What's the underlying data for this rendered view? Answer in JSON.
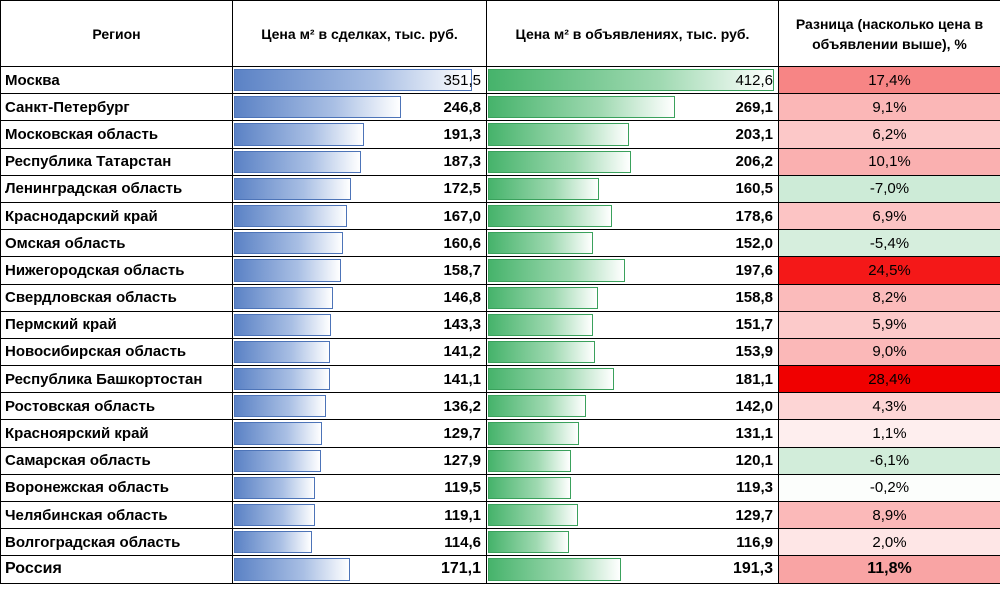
{
  "headers": {
    "region": "Регион",
    "deal": "Цена м² в сделках, тыс. руб.",
    "listing": "Цена м² в объявлениях, тыс. руб.",
    "diff": "Разница (насколько цена в объявлении выше), %"
  },
  "rows": [
    {
      "region": "Москва",
      "deal": "351,5",
      "listing": "412,6",
      "diff": "17,4%",
      "deal_value": 351.5,
      "listing_value": 412.6,
      "diff_value": 17.4,
      "diff_color": "#f78585"
    },
    {
      "region": "Санкт-Петербург",
      "deal": "246,8",
      "listing": "269,1",
      "diff": "9,1%",
      "deal_value": 246.8,
      "listing_value": 269.1,
      "diff_value": 9.1,
      "diff_color": "#fbb7b7"
    },
    {
      "region": "Московская область",
      "deal": "191,3",
      "listing": "203,1",
      "diff": "6,2%",
      "deal_value": 191.3,
      "listing_value": 203.1,
      "diff_value": 6.2,
      "diff_color": "#fcc8c8"
    },
    {
      "region": "Республика Татарстан",
      "deal": "187,3",
      "listing": "206,2",
      "diff": "10,1%",
      "deal_value": 187.3,
      "listing_value": 206.2,
      "diff_value": 10.1,
      "diff_color": "#fab0b0"
    },
    {
      "region": "Ленинградская область",
      "deal": "172,5",
      "listing": "160,5",
      "diff": "-7,0%",
      "deal_value": 172.5,
      "listing_value": 160.5,
      "diff_value": -7.0,
      "diff_color": "#cdebd7"
    },
    {
      "region": "Краснодарский край",
      "deal": "167,0",
      "listing": "178,6",
      "diff": "6,9%",
      "deal_value": 167.0,
      "listing_value": 178.6,
      "diff_value": 6.9,
      "diff_color": "#fcc4c4"
    },
    {
      "region": "Омская область",
      "deal": "160,6",
      "listing": "152,0",
      "diff": "-5,4%",
      "deal_value": 160.6,
      "listing_value": 152.0,
      "diff_value": -5.4,
      "diff_color": "#d6eedd"
    },
    {
      "region": "Нижегородская область",
      "deal": "158,7",
      "listing": "197,6",
      "diff": "24,5%",
      "deal_value": 158.7,
      "listing_value": 197.6,
      "diff_value": 24.5,
      "diff_color": "#f41818"
    },
    {
      "region": "Свердловская область",
      "deal": "146,8",
      "listing": "158,8",
      "diff": "8,2%",
      "deal_value": 146.8,
      "listing_value": 158.8,
      "diff_value": 8.2,
      "diff_color": "#fbbbbb"
    },
    {
      "region": "Пермский край",
      "deal": "143,3",
      "listing": "151,7",
      "diff": "5,9%",
      "deal_value": 143.3,
      "listing_value": 151.7,
      "diff_value": 5.9,
      "diff_color": "#fccaca"
    },
    {
      "region": "Новосибирская область",
      "deal": "141,2",
      "listing": "153,9",
      "diff": "9,0%",
      "deal_value": 141.2,
      "listing_value": 153.9,
      "diff_value": 9.0,
      "diff_color": "#fbb8b8"
    },
    {
      "region": "Республика Башкортостан",
      "deal": "141,1",
      "listing": "181,1",
      "diff": "28,4%",
      "deal_value": 141.1,
      "listing_value": 181.1,
      "diff_value": 28.4,
      "diff_color": "#f00000"
    },
    {
      "region": "Ростовская область",
      "deal": "136,2",
      "listing": "142,0",
      "diff": "4,3%",
      "deal_value": 136.2,
      "listing_value": 142.0,
      "diff_value": 4.3,
      "diff_color": "#fdd5d5"
    },
    {
      "region": "Красноярский край",
      "deal": "129,7",
      "listing": "131,1",
      "diff": "1,1%",
      "deal_value": 129.7,
      "listing_value": 131.1,
      "diff_value": 1.1,
      "diff_color": "#feeeee"
    },
    {
      "region": "Самарская область",
      "deal": "127,9",
      "listing": "120,1",
      "diff": "-6,1%",
      "deal_value": 127.9,
      "listing_value": 120.1,
      "diff_value": -6.1,
      "diff_color": "#d2edda"
    },
    {
      "region": "Воронежская область",
      "deal": "119,5",
      "listing": "119,3",
      "diff": "-0,2%",
      "deal_value": 119.5,
      "listing_value": 119.3,
      "diff_value": -0.2,
      "diff_color": "#fcfefc"
    },
    {
      "region": "Челябинская область",
      "deal": "119,1",
      "listing": "129,7",
      "diff": "8,9%",
      "deal_value": 119.1,
      "listing_value": 129.7,
      "diff_value": 8.9,
      "diff_color": "#fbb9b9"
    },
    {
      "region": "Волгоградская область",
      "deal": "114,6",
      "listing": "116,9",
      "diff": "2,0%",
      "deal_value": 114.6,
      "listing_value": 116.9,
      "diff_value": 2.0,
      "diff_color": "#fee6e6"
    }
  ],
  "total": {
    "region": "Россия",
    "deal": "171,1",
    "listing": "191,3",
    "diff": "11,8%",
    "deal_value": 171.1,
    "listing_value": 191.3,
    "diff_value": 11.8,
    "diff_color": "#f9a4a4"
  },
  "colors": {
    "deal_bar": "#5b82c5",
    "listing_bar": "#46b36b",
    "diff_positive": "#f00000",
    "diff_negative": "#cdebd7"
  }
}
